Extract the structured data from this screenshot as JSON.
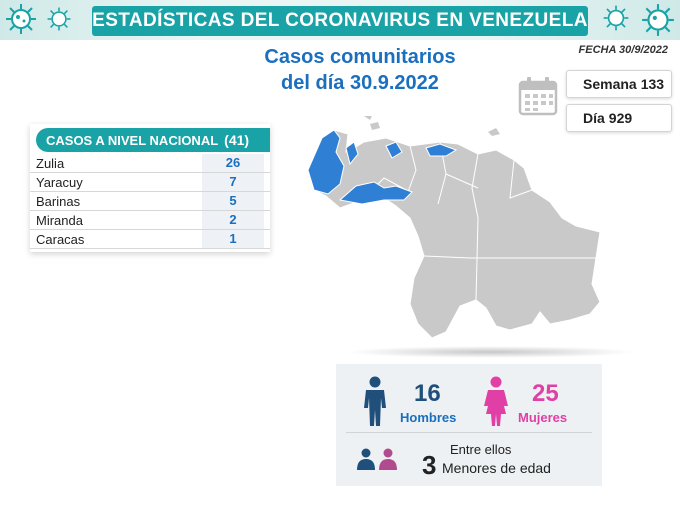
{
  "header": {
    "title": "ESTADÍSTICAS DEL CORONAVIRUS EN VENEZUELA"
  },
  "subtitle": {
    "line1": "Casos comunitarios",
    "line2": "del día 30.9.2022"
  },
  "date_label": "FECHA 30/9/2022",
  "week": {
    "label": "Semana",
    "value": "133"
  },
  "day": {
    "label": "Día",
    "value": "929"
  },
  "cases": {
    "title": "CASOS A NIVEL NACIONAL",
    "total": "(41)",
    "rows": [
      {
        "state": "Zulia",
        "count": "26"
      },
      {
        "state": "Yaracuy",
        "count": "7"
      },
      {
        "state": "Barinas",
        "count": "5"
      },
      {
        "state": "Miranda",
        "count": "2"
      },
      {
        "state": "Caracas",
        "count": "1"
      }
    ]
  },
  "gender": {
    "men_count": "16",
    "men_label": "Hombres",
    "women_count": "25",
    "women_label": "Mujeres",
    "minors_intro": "Entre ellos",
    "minors_count": "3",
    "minors_label": "Menores de edad"
  },
  "colors": {
    "teal": "#1aa3a6",
    "blue": "#1a6fbf",
    "pink": "#e040a6",
    "map_gray": "#c9c9c9",
    "map_highlight": "#2f7fd4"
  },
  "icons": [
    "virus-icon",
    "calendar-icon",
    "male-icon",
    "female-icon",
    "male-small-icon",
    "female-small-icon"
  ]
}
